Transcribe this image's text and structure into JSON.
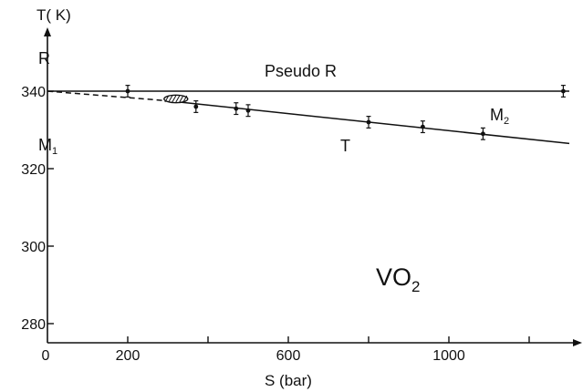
{
  "chart_data": {
    "type": "line",
    "xlabel": "S (bar)",
    "ylabel": "T( K)",
    "xlim": [
      0,
      1300
    ],
    "ylim": [
      275,
      360
    ],
    "x_ticks": [
      0,
      200,
      600,
      1000
    ],
    "x_minor_ticks": [
      400,
      800,
      1200
    ],
    "y_ticks": [
      280,
      300,
      320,
      340
    ],
    "annotations": {
      "compound": "VO",
      "compound_sub": "2",
      "phase_R": "R",
      "phase_M1": "M",
      "phase_M1_sub": "1",
      "phase_M2": "M",
      "phase_M2_sub": "2",
      "phase_T": "T",
      "pseudo_R": "Pseudo R"
    },
    "series": [
      {
        "style": "solid",
        "points": [
          [
            0,
            340
          ],
          [
            1300,
            340
          ]
        ]
      },
      {
        "style": "dashed",
        "points": [
          [
            0,
            340
          ],
          [
            300,
            337.5
          ]
        ]
      },
      {
        "style": "solid",
        "points": [
          [
            300,
            337.5
          ],
          [
            1300,
            326.5
          ]
        ]
      }
    ],
    "data_points": [
      {
        "x": 200,
        "y": 340,
        "err": 1.5
      },
      {
        "x": 370,
        "y": 336,
        "err": 1.5
      },
      {
        "x": 470,
        "y": 335.5,
        "err": 1.5
      },
      {
        "x": 500,
        "y": 335,
        "err": 1.5
      },
      {
        "x": 800,
        "y": 332,
        "err": 1.5
      },
      {
        "x": 935,
        "y": 330.8,
        "err": 1.5
      },
      {
        "x": 1085,
        "y": 329,
        "err": 1.5
      },
      {
        "x": 1285,
        "y": 340,
        "err": 1.5
      }
    ],
    "hatched_marker": {
      "x": 320,
      "y": 338
    }
  }
}
